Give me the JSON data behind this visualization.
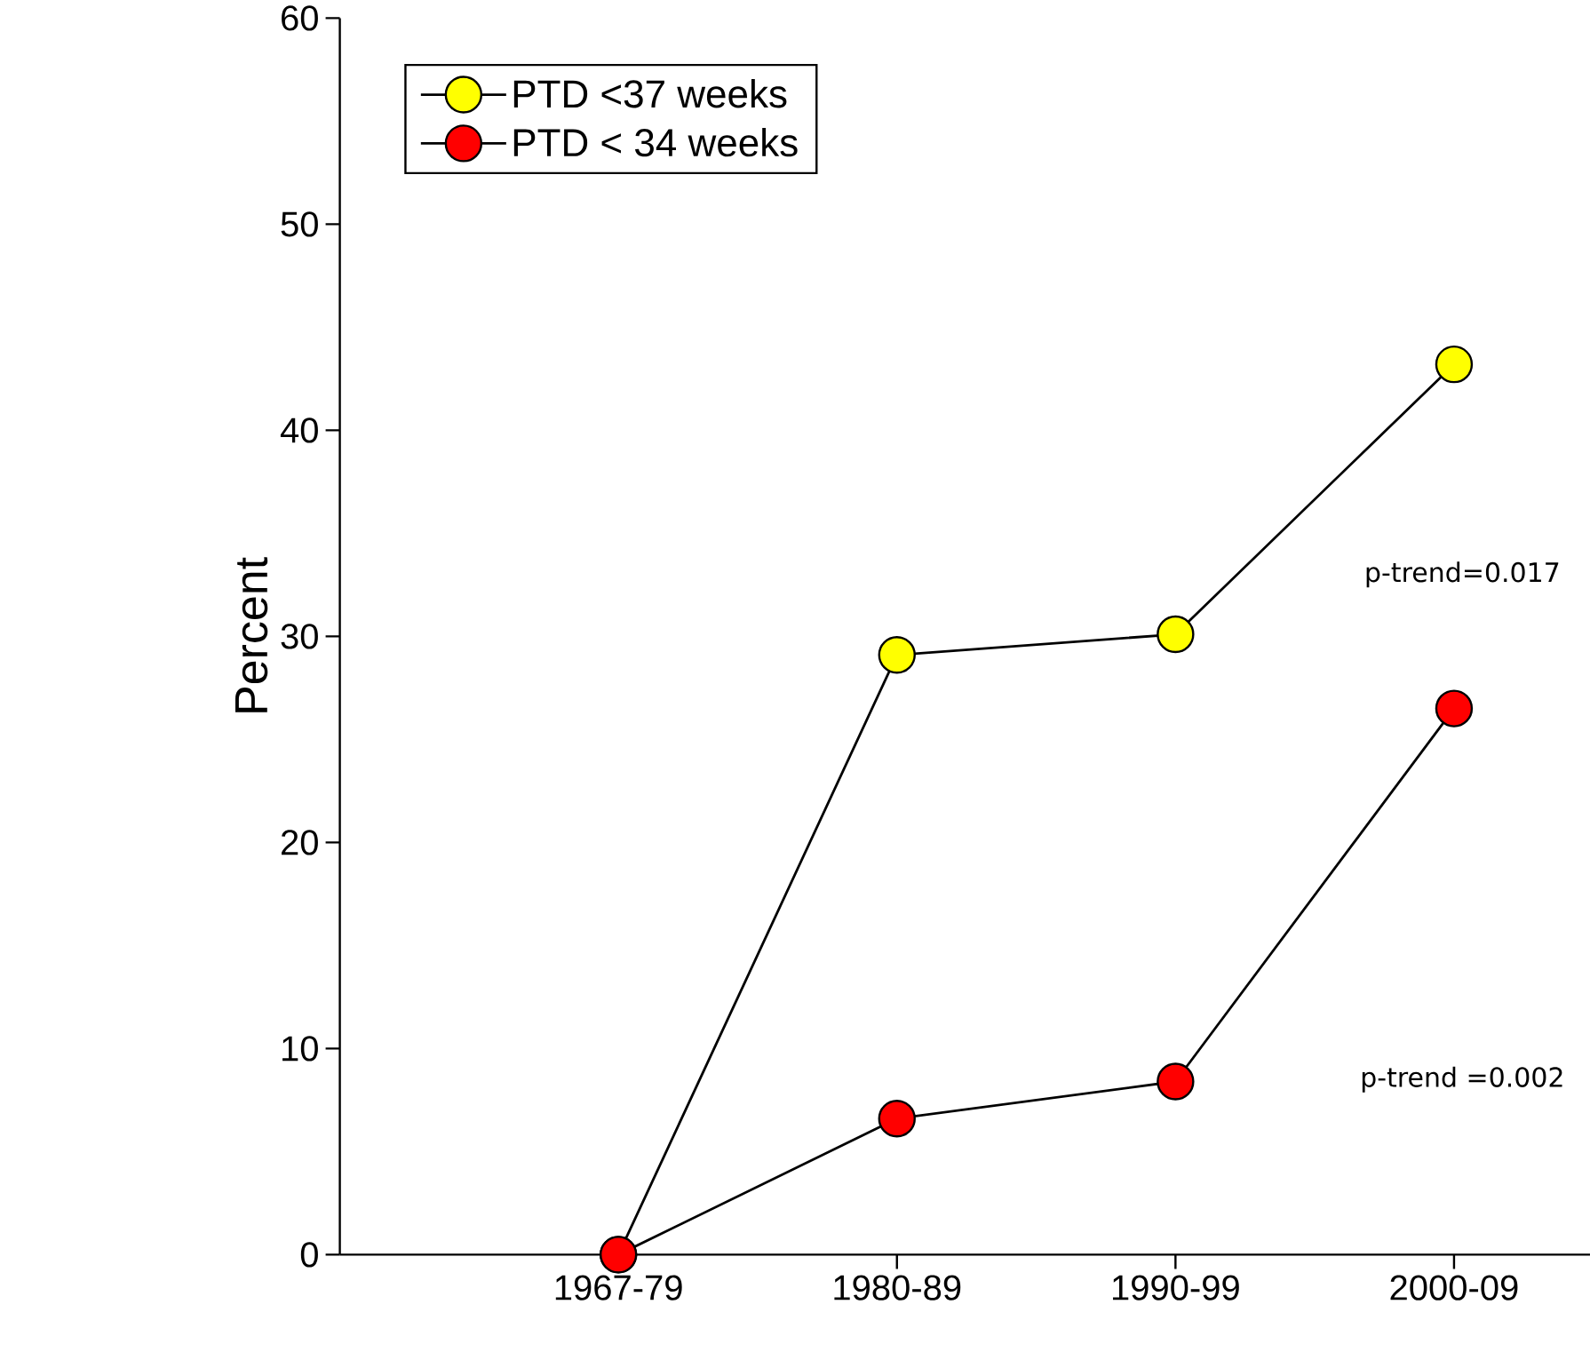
{
  "chart_data": {
    "type": "line",
    "ylabel": "Percent",
    "categories": [
      "1967-79",
      "1980-89",
      "1990-99",
      "2000-09"
    ],
    "series": [
      {
        "name": "PTD <37 weeks",
        "color": "#ffff00",
        "values": [
          0,
          29.1,
          30.1,
          43.2
        ]
      },
      {
        "name": "PTD < 34 weeks",
        "color": "#ff0000",
        "values": [
          0,
          6.6,
          8.4,
          26.5
        ]
      }
    ],
    "ylim": [
      0,
      60
    ],
    "yticks": [
      0,
      10,
      20,
      30,
      40,
      50,
      60
    ],
    "marker": "circle",
    "line_style": "solid",
    "legend": "top left",
    "grid": false,
    "annotations": [
      "p-trend=0.017",
      "p-trend =0.002"
    ]
  }
}
